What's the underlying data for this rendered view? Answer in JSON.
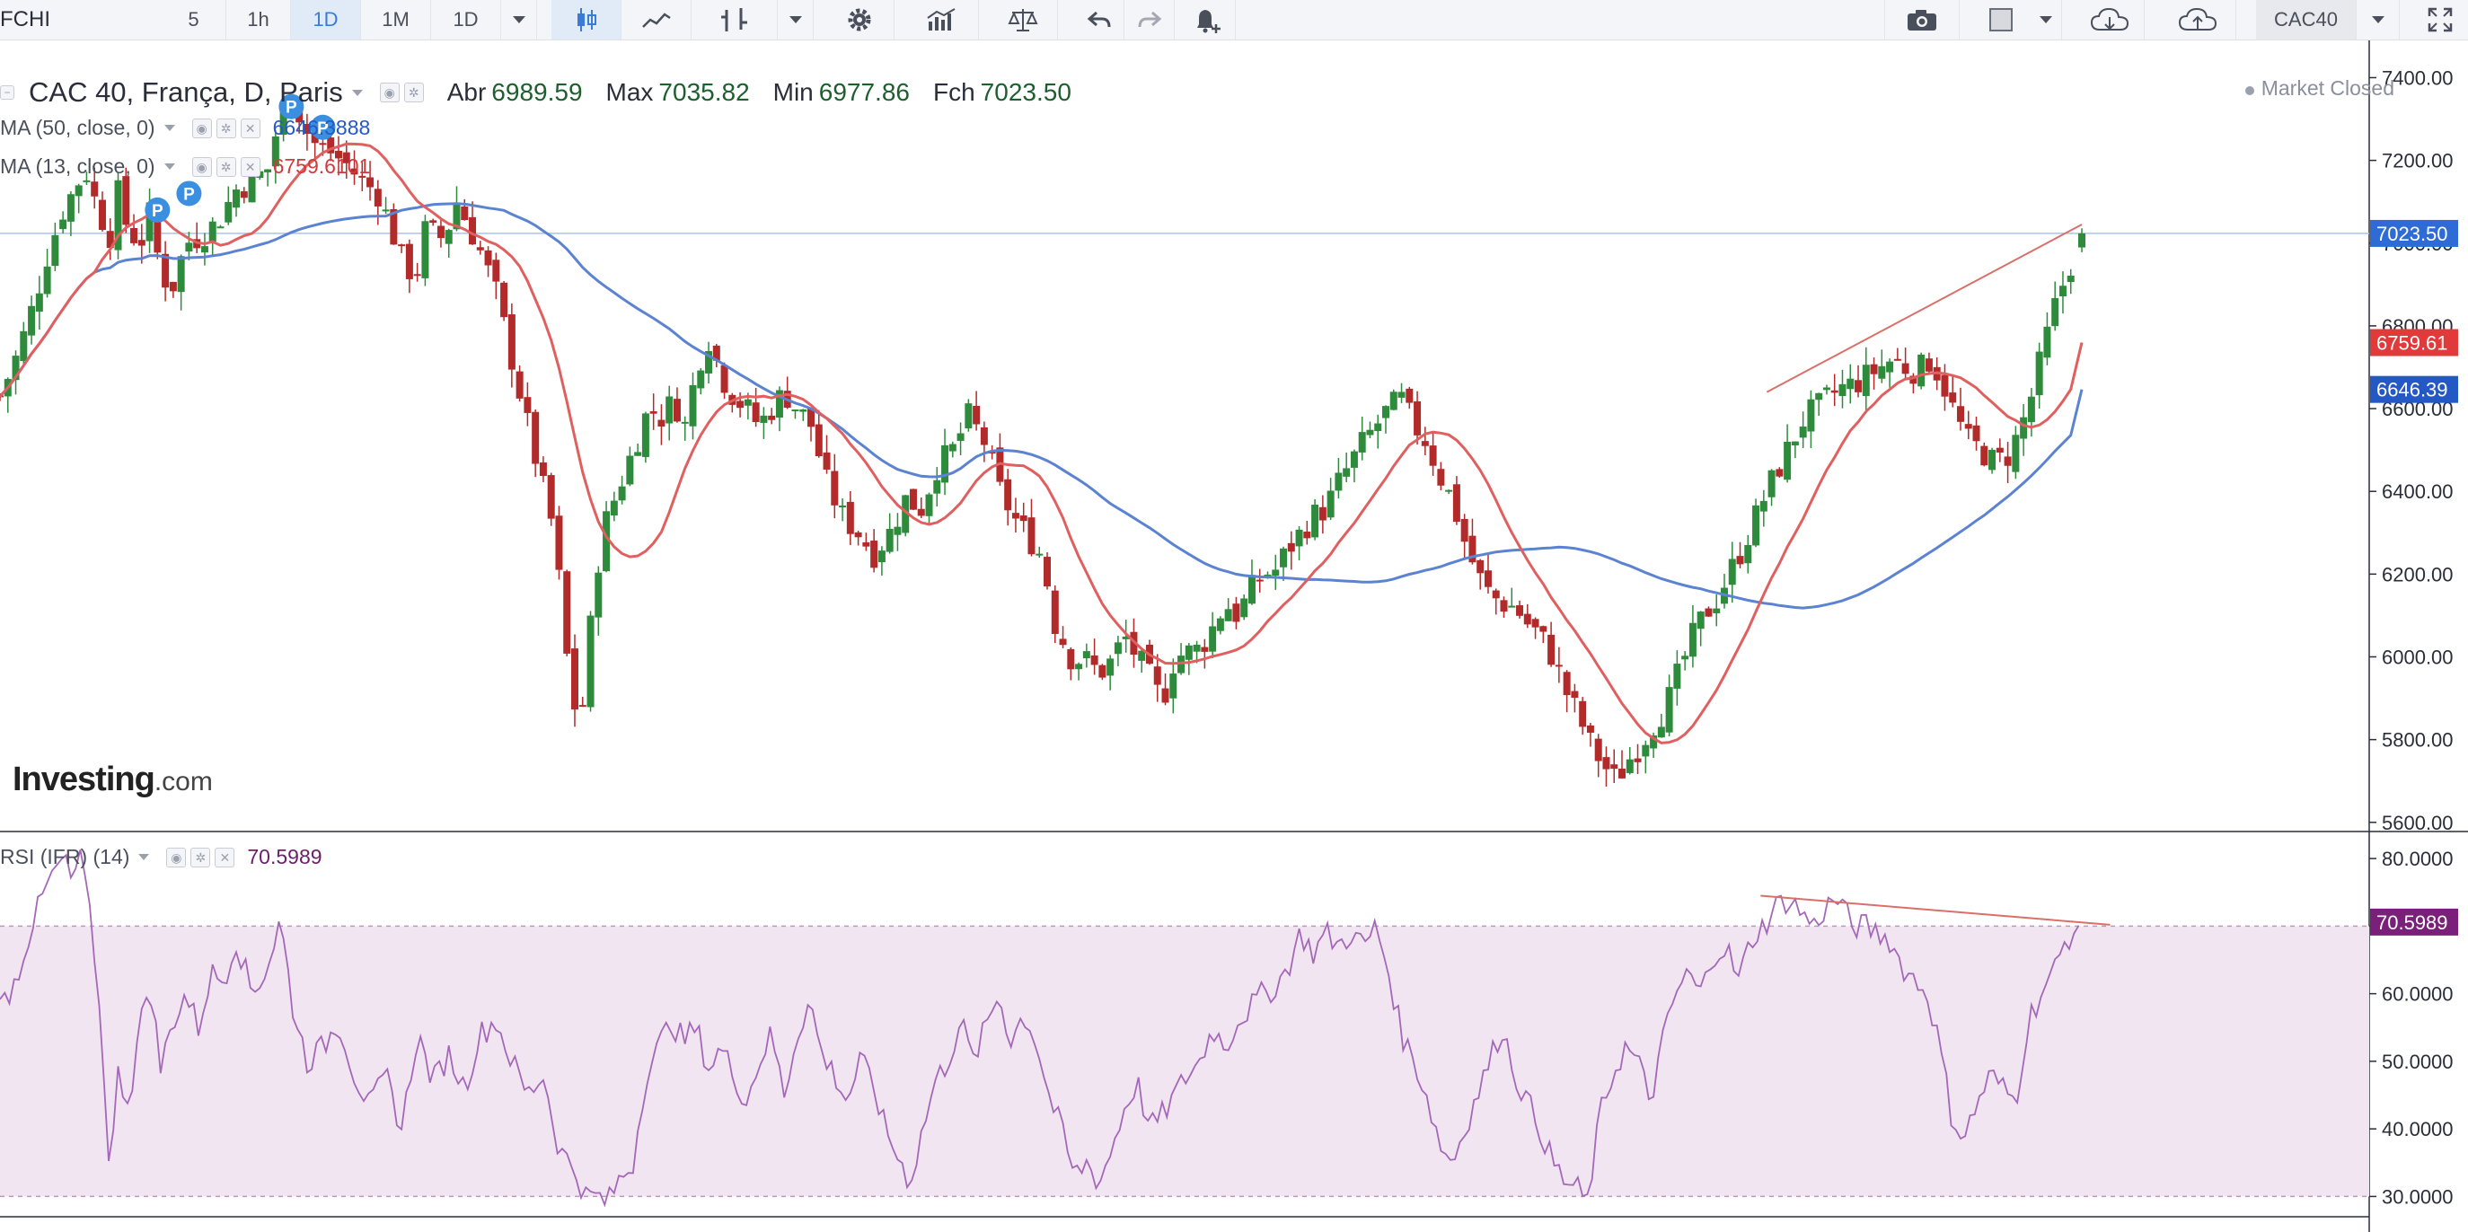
{
  "toolbar": {
    "symbol": "FCHI",
    "intervals": [
      "5",
      "1h",
      "1D",
      "1M",
      "1D"
    ],
    "active_interval": "1D",
    "symbol_search": "CAC40"
  },
  "legend": {
    "title": "CAC 40, França, D, Paris",
    "open_label": "Abr",
    "open_value": "6989.59",
    "high_label": "Max",
    "high_value": "7035.82",
    "low_label": "Min",
    "low_value": "6977.86",
    "close_label": "Fch",
    "close_value": "7023.50",
    "ma50_label": "MA (50, close, 0)",
    "ma50_value": "6646.3888",
    "ma13_label": "MA (13, close, 0)",
    "ma13_value": "6759.6101",
    "market_status": "Market Closed",
    "rsi_label": "RSI (IFR) (14)",
    "rsi_value": "70.5989"
  },
  "logo": {
    "main": "Investing",
    "suffix": ".com"
  },
  "colors": {
    "up": "#2e8b3c",
    "down": "#b22a2a",
    "ma50": "#5b83d1",
    "ma13": "#e05f5f",
    "rsi_line": "#a468b8",
    "rsi_band": "#f1e5f1",
    "trend": "#d9706a",
    "price_tag": "#2f6bd6",
    "ma13_tag": "#e03a3a",
    "ma50_tag": "#2458c5",
    "rsi_tag": "#7a1f7a",
    "p_badge": "#3a8fe0"
  },
  "chart_data": {
    "type": "candlestick",
    "price_axis": {
      "ticks": [
        "7400.00",
        "7200.00",
        "7000.00",
        "6800.00",
        "6600.00",
        "6400.00",
        "6200.00",
        "6000.00",
        "5800.00",
        "5600.00"
      ],
      "ylim": [
        5580,
        7490
      ]
    },
    "rsi_axis": {
      "ticks": [
        "80.0000",
        "70.0000",
        "60.0000",
        "50.0000",
        "40.0000",
        "30.0000"
      ],
      "ylim": [
        27,
        84
      ]
    },
    "price_tags": [
      "7023.50",
      "6759.61",
      "6646.39"
    ],
    "rsi_tag": "70.5989",
    "rsi_levels": [
      70,
      30
    ],
    "close_line": 7023.5,
    "keypoints": [
      [
        0,
        6630
      ],
      [
        12,
        6740
      ],
      [
        22,
        6860
      ],
      [
        30,
        6970
      ],
      [
        40,
        7080
      ],
      [
        50,
        7150
      ],
      [
        55,
        7170
      ],
      [
        62,
        7080
      ],
      [
        70,
        7020
      ],
      [
        75,
        7120
      ],
      [
        82,
        7020
      ],
      [
        90,
        7010
      ],
      [
        96,
        7080
      ],
      [
        102,
        6920
      ],
      [
        110,
        6900
      ],
      [
        118,
        7000
      ],
      [
        128,
        7020
      ],
      [
        138,
        7050
      ],
      [
        150,
        7130
      ],
      [
        160,
        7150
      ],
      [
        170,
        7180
      ],
      [
        178,
        7310
      ],
      [
        185,
        7370
      ],
      [
        193,
        7280
      ],
      [
        200,
        7240
      ],
      [
        210,
        7220
      ],
      [
        220,
        7190
      ],
      [
        230,
        7150
      ],
      [
        240,
        7120
      ],
      [
        248,
        7040
      ],
      [
        256,
        6950
      ],
      [
        264,
        6920
      ],
      [
        270,
        7030
      ],
      [
        276,
        7020
      ],
      [
        282,
        7010
      ],
      [
        290,
        7100
      ],
      [
        298,
        7040
      ],
      [
        305,
        6980
      ],
      [
        315,
        6880
      ],
      [
        325,
        6720
      ],
      [
        335,
        6560
      ],
      [
        344,
        6420
      ],
      [
        352,
        6300
      ],
      [
        360,
        6000
      ],
      [
        368,
        5810
      ],
      [
        374,
        6040
      ],
      [
        382,
        6300
      ],
      [
        392,
        6400
      ],
      [
        402,
        6500
      ],
      [
        412,
        6600
      ],
      [
        420,
        6580
      ],
      [
        428,
        6620
      ],
      [
        436,
        6550
      ],
      [
        442,
        6700
      ],
      [
        450,
        6770
      ],
      [
        458,
        6680
      ],
      [
        466,
        6630
      ],
      [
        474,
        6600
      ],
      [
        482,
        6560
      ],
      [
        490,
        6600
      ],
      [
        498,
        6640
      ],
      [
        506,
        6600
      ],
      [
        515,
        6560
      ],
      [
        525,
        6420
      ],
      [
        535,
        6340
      ],
      [
        545,
        6300
      ],
      [
        555,
        6250
      ],
      [
        565,
        6300
      ],
      [
        575,
        6380
      ],
      [
        585,
        6360
      ],
      [
        595,
        6460
      ],
      [
        605,
        6500
      ],
      [
        615,
        6580
      ],
      [
        625,
        6520
      ],
      [
        635,
        6400
      ],
      [
        645,
        6330
      ],
      [
        655,
        6280
      ],
      [
        662,
        6240
      ],
      [
        670,
        6080
      ],
      [
        680,
        6000
      ],
      [
        690,
        5990
      ],
      [
        698,
        5960
      ],
      [
        706,
        5990
      ],
      [
        714,
        6050
      ],
      [
        722,
        6000
      ],
      [
        730,
        5950
      ],
      [
        738,
        5890
      ],
      [
        746,
        6000
      ],
      [
        754,
        6010
      ],
      [
        762,
        6020
      ],
      [
        770,
        6070
      ],
      [
        778,
        6130
      ],
      [
        786,
        6100
      ],
      [
        794,
        6160
      ],
      [
        802,
        6200
      ],
      [
        810,
        6210
      ],
      [
        818,
        6260
      ],
      [
        826,
        6300
      ],
      [
        834,
        6340
      ],
      [
        842,
        6360
      ],
      [
        850,
        6420
      ],
      [
        858,
        6470
      ],
      [
        866,
        6520
      ],
      [
        874,
        6560
      ],
      [
        882,
        6600
      ],
      [
        890,
        6620
      ],
      [
        898,
        6560
      ],
      [
        906,
        6520
      ],
      [
        914,
        6440
      ],
      [
        922,
        6380
      ],
      [
        930,
        6280
      ],
      [
        938,
        6200
      ],
      [
        946,
        6150
      ],
      [
        954,
        6130
      ],
      [
        962,
        6120
      ],
      [
        970,
        6080
      ],
      [
        978,
        6050
      ],
      [
        986,
        6000
      ],
      [
        994,
        5920
      ],
      [
        1002,
        5860
      ],
      [
        1010,
        5790
      ],
      [
        1018,
        5740
      ],
      [
        1026,
        5700
      ],
      [
        1034,
        5750
      ],
      [
        1042,
        5790
      ],
      [
        1050,
        5840
      ],
      [
        1058,
        5880
      ],
      [
        1066,
        5960
      ],
      [
        1074,
        6040
      ],
      [
        1082,
        6100
      ],
      [
        1090,
        6140
      ],
      [
        1098,
        6200
      ],
      [
        1106,
        6260
      ],
      [
        1114,
        6330
      ],
      [
        1122,
        6400
      ],
      [
        1130,
        6460
      ],
      [
        1138,
        6520
      ],
      [
        1146,
        6580
      ],
      [
        1154,
        6600
      ],
      [
        1162,
        6630
      ],
      [
        1170,
        6650
      ],
      [
        1178,
        6660
      ],
      [
        1186,
        6680
      ],
      [
        1194,
        6700
      ],
      [
        1202,
        6720
      ],
      [
        1210,
        6700
      ],
      [
        1218,
        6690
      ],
      [
        1226,
        6720
      ],
      [
        1234,
        6660
      ],
      [
        1242,
        6580
      ],
      [
        1250,
        6520
      ],
      [
        1258,
        6500
      ],
      [
        1266,
        6470
      ],
      [
        1274,
        6480
      ],
      [
        1282,
        6540
      ],
      [
        1290,
        6630
      ],
      [
        1298,
        6750
      ],
      [
        1306,
        6860
      ],
      [
        1314,
        6940
      ],
      [
        1322,
        7023.5
      ]
    ],
    "rsi_keypoints": [
      [
        0,
        58
      ],
      [
        10,
        62
      ],
      [
        20,
        70
      ],
      [
        30,
        76
      ],
      [
        40,
        80
      ],
      [
        45,
        77
      ],
      [
        52,
        80
      ],
      [
        60,
        66
      ],
      [
        65,
        52
      ],
      [
        70,
        33
      ],
      [
        75,
        48
      ],
      [
        82,
        44
      ],
      [
        88,
        54
      ],
      [
        95,
        62
      ],
      [
        102,
        49
      ],
      [
        110,
        56
      ],
      [
        118,
        60
      ],
      [
        126,
        55
      ],
      [
        134,
        63
      ],
      [
        142,
        62
      ],
      [
        150,
        68
      ],
      [
        160,
        60
      ],
      [
        170,
        64
      ],
      [
        178,
        71
      ],
      [
        186,
        58
      ],
      [
        195,
        50
      ],
      [
        205,
        52
      ],
      [
        215,
        56
      ],
      [
        225,
        48
      ],
      [
        235,
        43
      ],
      [
        245,
        48
      ],
      [
        255,
        40
      ],
      [
        265,
        54
      ],
      [
        275,
        47
      ],
      [
        285,
        51
      ],
      [
        295,
        46
      ],
      [
        305,
        54
      ],
      [
        315,
        56
      ],
      [
        325,
        50
      ],
      [
        335,
        45
      ],
      [
        345,
        48
      ],
      [
        355,
        37
      ],
      [
        365,
        34
      ],
      [
        372,
        30
      ],
      [
        380,
        30
      ],
      [
        386,
        29
      ],
      [
        392,
        32
      ],
      [
        402,
        35
      ],
      [
        410,
        48
      ],
      [
        418,
        52
      ],
      [
        426,
        56
      ],
      [
        434,
        53
      ],
      [
        442,
        55
      ],
      [
        450,
        49
      ],
      [
        458,
        52
      ],
      [
        466,
        48
      ],
      [
        474,
        44
      ],
      [
        482,
        50
      ],
      [
        490,
        54
      ],
      [
        498,
        45
      ],
      [
        506,
        54
      ],
      [
        514,
        59
      ],
      [
        522,
        51
      ],
      [
        530,
        48
      ],
      [
        538,
        44
      ],
      [
        546,
        50
      ],
      [
        554,
        47
      ],
      [
        562,
        40
      ],
      [
        570,
        36
      ],
      [
        578,
        32
      ],
      [
        586,
        40
      ],
      [
        594,
        47
      ],
      [
        602,
        50
      ],
      [
        610,
        56
      ],
      [
        618,
        50
      ],
      [
        626,
        55
      ],
      [
        634,
        60
      ],
      [
        642,
        53
      ],
      [
        650,
        57
      ],
      [
        658,
        53
      ],
      [
        666,
        45
      ],
      [
        674,
        40
      ],
      [
        682,
        33
      ],
      [
        690,
        35
      ],
      [
        698,
        32
      ],
      [
        706,
        37
      ],
      [
        714,
        43
      ],
      [
        722,
        47
      ],
      [
        730,
        40
      ],
      [
        738,
        42
      ],
      [
        746,
        45
      ],
      [
        754,
        48
      ],
      [
        762,
        50
      ],
      [
        770,
        55
      ],
      [
        778,
        52
      ],
      [
        786,
        56
      ],
      [
        794,
        58
      ],
      [
        802,
        60
      ],
      [
        810,
        61
      ],
      [
        818,
        64
      ],
      [
        826,
        69
      ],
      [
        834,
        66
      ],
      [
        842,
        69
      ],
      [
        850,
        67
      ],
      [
        858,
        69
      ],
      [
        866,
        67
      ],
      [
        874,
        70
      ],
      [
        882,
        63
      ],
      [
        890,
        54
      ],
      [
        898,
        50
      ],
      [
        906,
        45
      ],
      [
        914,
        38
      ],
      [
        922,
        35
      ],
      [
        930,
        40
      ],
      [
        938,
        45
      ],
      [
        946,
        50
      ],
      [
        954,
        55
      ],
      [
        962,
        48
      ],
      [
        970,
        44
      ],
      [
        978,
        40
      ],
      [
        986,
        35
      ],
      [
        994,
        32
      ],
      [
        1002,
        31
      ],
      [
        1008,
        29
      ],
      [
        1016,
        42
      ],
      [
        1024,
        48
      ],
      [
        1032,
        52
      ],
      [
        1040,
        50
      ],
      [
        1048,
        44
      ],
      [
        1056,
        53
      ],
      [
        1064,
        60
      ],
      [
        1072,
        63
      ],
      [
        1080,
        60
      ],
      [
        1088,
        66
      ],
      [
        1096,
        67
      ],
      [
        1104,
        62
      ],
      [
        1112,
        68
      ],
      [
        1120,
        70
      ],
      [
        1128,
        73
      ],
      [
        1136,
        74
      ],
      [
        1144,
        72
      ],
      [
        1152,
        70
      ],
      [
        1160,
        73
      ],
      [
        1168,
        74
      ],
      [
        1176,
        70
      ],
      [
        1184,
        70
      ],
      [
        1192,
        69
      ],
      [
        1200,
        68
      ],
      [
        1208,
        64
      ],
      [
        1216,
        62
      ],
      [
        1224,
        60
      ],
      [
        1232,
        52
      ],
      [
        1240,
        41
      ],
      [
        1248,
        39
      ],
      [
        1256,
        44
      ],
      [
        1264,
        48
      ],
      [
        1272,
        46
      ],
      [
        1280,
        44
      ],
      [
        1288,
        56
      ],
      [
        1296,
        60
      ],
      [
        1304,
        63
      ],
      [
        1312,
        68
      ],
      [
        1322,
        70.6
      ]
    ]
  }
}
